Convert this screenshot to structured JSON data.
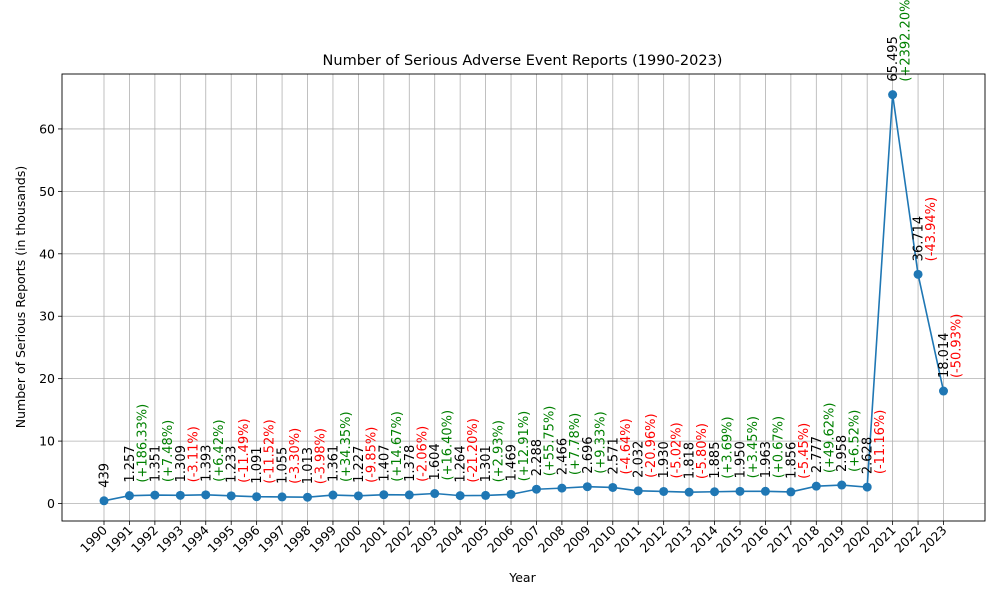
{
  "chart_data": {
    "type": "line",
    "title": "Number of Serious Adverse Event Reports (1990-2023)",
    "xlabel": "Year",
    "ylabel": "Number of Serious Reports (in thousands)",
    "ylim": [
      -2.8,
      68.8
    ],
    "yticks": [
      0,
      10,
      20,
      30,
      40,
      50,
      60
    ],
    "grid": true,
    "colors": {
      "line": "#1f77b4",
      "increase": "#008000",
      "decrease": "#ff0000",
      "text": "#000000"
    },
    "points": [
      {
        "x": "1990",
        "y": 0.439,
        "label": "439",
        "pct": ""
      },
      {
        "x": "1991",
        "y": 1.257,
        "label": "1.257",
        "pct": "(+186.33%)"
      },
      {
        "x": "1992",
        "y": 1.351,
        "label": "1.351",
        "pct": "(+7.48%)"
      },
      {
        "x": "1993",
        "y": 1.309,
        "label": "1.309",
        "pct": "(-3.11%)"
      },
      {
        "x": "1994",
        "y": 1.393,
        "label": "1.393",
        "pct": "(+6.42%)"
      },
      {
        "x": "1995",
        "y": 1.233,
        "label": "1.233",
        "pct": "(-11.49%)"
      },
      {
        "x": "1996",
        "y": 1.091,
        "label": "1.091",
        "pct": "(-11.52%)"
      },
      {
        "x": "1997",
        "y": 1.055,
        "label": "1.055",
        "pct": "(-3.30%)"
      },
      {
        "x": "1998",
        "y": 1.013,
        "label": "1.013",
        "pct": "(-3.98%)"
      },
      {
        "x": "1999",
        "y": 1.361,
        "label": "1.361",
        "pct": "(+34.35%)"
      },
      {
        "x": "2000",
        "y": 1.227,
        "label": "1.227",
        "pct": "(-9.85%)"
      },
      {
        "x": "2001",
        "y": 1.407,
        "label": "1.407",
        "pct": "(+14.67%)"
      },
      {
        "x": "2002",
        "y": 1.378,
        "label": "1.378",
        "pct": "(-2.06%)"
      },
      {
        "x": "2003",
        "y": 1.604,
        "label": "1.604",
        "pct": "(+16.40%)"
      },
      {
        "x": "2004",
        "y": 1.264,
        "label": "1.264",
        "pct": "(-21.20%)"
      },
      {
        "x": "2005",
        "y": 1.301,
        "label": "1.301",
        "pct": "(+2.93%)"
      },
      {
        "x": "2006",
        "y": 1.469,
        "label": "1.469",
        "pct": "(+12.91%)"
      },
      {
        "x": "2007",
        "y": 2.288,
        "label": "2.288",
        "pct": "(+55.75%)"
      },
      {
        "x": "2008",
        "y": 2.466,
        "label": "2.466",
        "pct": "(+7.78%)"
      },
      {
        "x": "2009",
        "y": 2.696,
        "label": "2.696",
        "pct": "(+9.33%)"
      },
      {
        "x": "2010",
        "y": 2.571,
        "label": "2.571",
        "pct": "(-4.64%)"
      },
      {
        "x": "2011",
        "y": 2.032,
        "label": "2.032",
        "pct": "(-20.96%)"
      },
      {
        "x": "2012",
        "y": 1.93,
        "label": "1.930",
        "pct": "(-5.02%)"
      },
      {
        "x": "2013",
        "y": 1.818,
        "label": "1.818",
        "pct": "(-5.80%)"
      },
      {
        "x": "2014",
        "y": 1.885,
        "label": "1.885",
        "pct": "(+3.69%)"
      },
      {
        "x": "2015",
        "y": 1.95,
        "label": "1.950",
        "pct": "(+3.45%)"
      },
      {
        "x": "2016",
        "y": 1.963,
        "label": "1.963",
        "pct": "(+0.67%)"
      },
      {
        "x": "2017",
        "y": 1.856,
        "label": "1.856",
        "pct": "(-5.45%)"
      },
      {
        "x": "2018",
        "y": 2.777,
        "label": "2.777",
        "pct": "(+49.62%)"
      },
      {
        "x": "2019",
        "y": 2.958,
        "label": "2.958",
        "pct": "(+6.52%)"
      },
      {
        "x": "2020",
        "y": 2.628,
        "label": "2.628",
        "pct": "(-11.16%)"
      },
      {
        "x": "2021",
        "y": 65.495,
        "label": "65.495",
        "pct": "(+2392.20%)"
      },
      {
        "x": "2022",
        "y": 36.714,
        "label": "36.714",
        "pct": "(-43.94%)"
      },
      {
        "x": "2023",
        "y": 18.014,
        "label": "18.014",
        "pct": "(-50.93%)"
      }
    ]
  }
}
